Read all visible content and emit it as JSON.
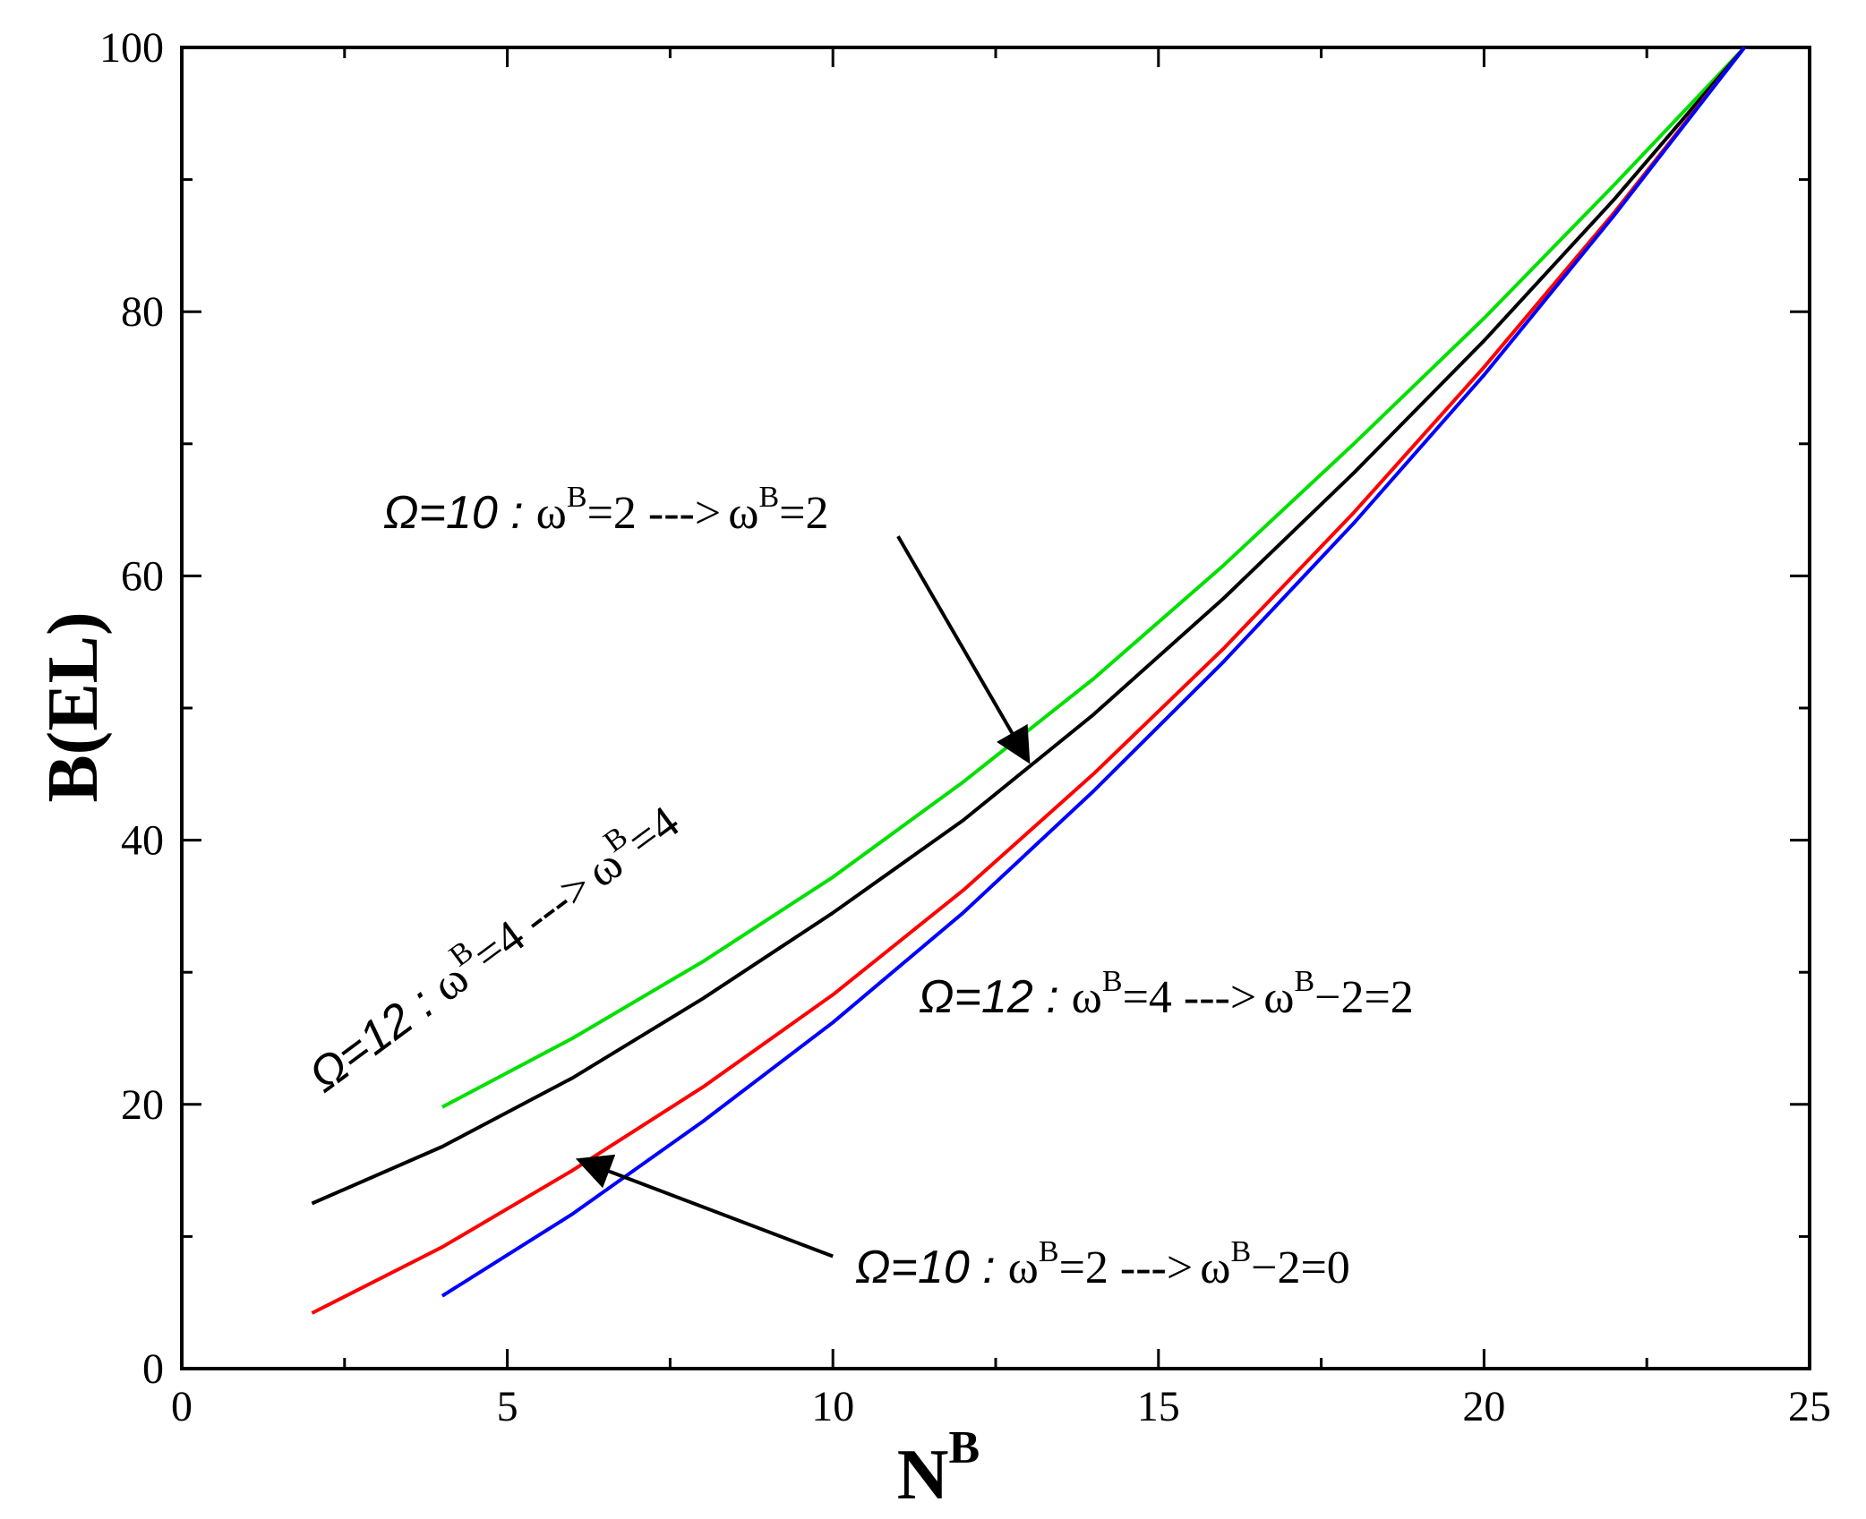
{
  "chart_data": {
    "type": "line",
    "xlabel": "N",
    "xlabel_sup": "B",
    "ylabel": "B(EL)",
    "xlim": [
      0,
      25
    ],
    "ylim": [
      0,
      100
    ],
    "xticks": [
      0,
      5,
      10,
      15,
      20,
      25
    ],
    "xtick_labels": [
      "0",
      "5",
      "10",
      "15",
      "20",
      "25"
    ],
    "yticks": [
      0,
      20,
      40,
      60,
      80,
      100
    ],
    "ytick_labels": [
      "0",
      "20",
      "40",
      "60",
      "80",
      "100"
    ],
    "grid": false,
    "series": [
      {
        "color": "#00e000",
        "x": [
          4,
          6,
          8,
          10,
          12,
          14,
          16,
          18,
          20,
          22,
          24
        ],
        "y": [
          19.8,
          25.0,
          30.8,
          37.2,
          44.4,
          52.2,
          60.8,
          70.0,
          79.5,
          89.6,
          100.0
        ]
      },
      {
        "color": "#000000",
        "x": [
          2,
          4,
          6,
          8,
          10,
          12,
          14,
          16,
          18,
          20,
          22,
          24
        ],
        "y": [
          12.5,
          16.8,
          22.0,
          28.0,
          34.5,
          41.5,
          49.5,
          58.3,
          67.8,
          77.8,
          88.5,
          100.0
        ]
      },
      {
        "color": "#ff0000",
        "x": [
          2,
          4,
          6,
          8,
          10,
          12,
          14,
          16,
          18,
          20,
          22,
          24
        ],
        "y": [
          4.2,
          9.2,
          15.0,
          21.3,
          28.3,
          36.2,
          45.0,
          54.5,
          64.8,
          75.8,
          87.5,
          100.0
        ]
      },
      {
        "color": "#0000ff",
        "x": [
          4,
          6,
          8,
          10,
          12,
          14,
          16,
          18,
          20,
          22,
          24
        ],
        "y": [
          5.5,
          11.7,
          18.7,
          26.2,
          34.5,
          43.7,
          53.5,
          64.0,
          75.2,
          87.3,
          100.0
        ]
      }
    ],
    "annotations": [
      {
        "omega": "Ω=12 :",
        "from_w": "ω",
        "from_sup": "B",
        "from_rest": "=4 --->",
        "to_w": "ω",
        "to_sup": "B",
        "to_rest": "=4"
      },
      {
        "omega": "Ω=10 :",
        "from_w": "ω",
        "from_sup": "B",
        "from_rest": "=2 --->",
        "to_w": "ω",
        "to_sup": "B",
        "to_rest": "=2"
      },
      {
        "omega": "Ω=12 :",
        "from_w": "ω",
        "from_sup": "B",
        "from_rest": "=4 --->",
        "to_w": "ω",
        "to_sup": "B",
        "to_rest": "−2=2"
      },
      {
        "omega": "Ω=10 :",
        "from_w": "ω",
        "from_sup": "B",
        "from_rest": "=2 --->",
        "to_w": "ω",
        "to_sup": "B",
        "to_rest": "−2=0"
      }
    ],
    "arrows": [
      {
        "from": [
          11.0,
          63.0
        ],
        "to": [
          13.0,
          46.0
        ]
      },
      {
        "from": [
          10.0,
          8.5
        ],
        "to": [
          6.1,
          15.8
        ]
      }
    ]
  }
}
